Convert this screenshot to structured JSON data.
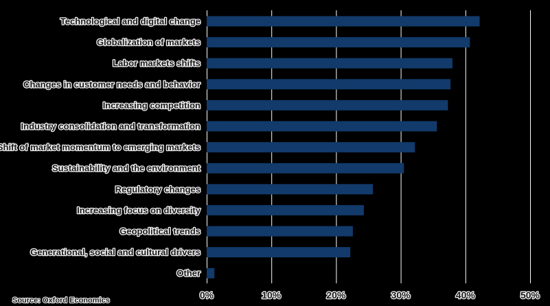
{
  "chart_data": {
    "type": "bar",
    "orientation": "horizontal",
    "categories": [
      "Technological and digital change",
      "Globalization of markets",
      "Labor markets shifts",
      "Changes in customer needs and behavior",
      "Increasing competition",
      "Industry consolidation and transformation",
      "Shift of market momentum to emerging markets",
      "Sustainability and the environment",
      "Regulatory changes",
      "Increasing focus on diversity",
      "Geopolitical trends",
      "Generational, social and cultural drivers",
      "Other"
    ],
    "values": [
      42.2,
      40.7,
      38.0,
      37.7,
      37.3,
      35.6,
      32.2,
      30.5,
      25.7,
      24.3,
      22.6,
      22.2,
      1.2
    ],
    "xlim": [
      0,
      50
    ],
    "xticks": [
      "0%",
      "10%",
      "20%",
      "30%",
      "40%",
      "50%"
    ],
    "grid": true,
    "legend": false,
    "title": "",
    "xlabel": "",
    "ylabel": "",
    "source": "Source: Oxford Economics",
    "colors": {
      "bar": "#123a6b",
      "background": "#000000",
      "gridline": "#ffffff",
      "text": "#1a1a1a",
      "text_outline": "#f2f2f2"
    }
  }
}
